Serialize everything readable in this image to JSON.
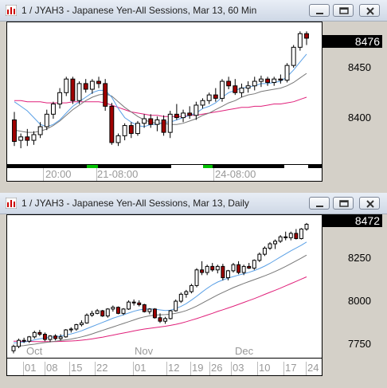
{
  "top_window": {
    "title": "1 / JYAH3 - Japanese Yen-All Sessions, Mar 13, 60 Min",
    "last_price": "8476",
    "price_labels": [
      "8450",
      "8400"
    ],
    "time_labels": [
      "20:00",
      "21-08:00",
      "24-08:00"
    ]
  },
  "bottom_window": {
    "title": "1 / JYAH3 - Japanese Yen-All Sessions, Mar 13, Daily",
    "last_price": "8472",
    "price_labels": [
      "8250",
      "8000",
      "7750"
    ],
    "month_labels": [
      "Oct",
      "Nov",
      "Dec"
    ],
    "day_labels": [
      "01",
      "08",
      "15",
      "22",
      "01",
      "12",
      "19",
      "26",
      "03",
      "10",
      "17",
      "24"
    ]
  },
  "window_buttons": [
    "minimize",
    "restore",
    "close"
  ],
  "colors": {
    "up": "#ffffff",
    "down": "#a00000",
    "ma_blue": "#5aa0e6",
    "ma_gray": "#777777",
    "ma_pink": "#e0207a",
    "session_green": "#00c000"
  },
  "chart_data": [
    {
      "type": "candlestick",
      "title": "1 / JYAH3 - Japanese Yen-All Sessions, Mar 13, 60 Min",
      "ylim": [
        8365,
        8490
      ],
      "y_ticks": [
        8400,
        8450
      ],
      "x_ticks": [
        "20:00",
        "21-08:00",
        "24-08:00"
      ],
      "grid": false,
      "candles": [
        [
          8404,
          8411,
          8381,
          8385
        ],
        [
          8386,
          8392,
          8379,
          8389
        ],
        [
          8389,
          8396,
          8381,
          8386
        ],
        [
          8386,
          8394,
          8382,
          8391
        ],
        [
          8391,
          8402,
          8388,
          8398
        ],
        [
          8398,
          8413,
          8395,
          8409
        ],
        [
          8409,
          8420,
          8405,
          8418
        ],
        [
          8418,
          8432,
          8414,
          8428
        ],
        [
          8428,
          8442,
          8425,
          8440
        ],
        [
          8440,
          8442,
          8418,
          8421
        ],
        [
          8421,
          8438,
          8418,
          8436
        ],
        [
          8436,
          8440,
          8428,
          8431
        ],
        [
          8431,
          8440,
          8427,
          8438
        ],
        [
          8438,
          8442,
          8432,
          8436
        ],
        [
          8436,
          8440,
          8412,
          8416
        ],
        [
          8416,
          8419,
          8382,
          8384
        ],
        [
          8384,
          8392,
          8381,
          8390
        ],
        [
          8390,
          8401,
          8386,
          8399
        ],
        [
          8399,
          8402,
          8388,
          8392
        ],
        [
          8392,
          8403,
          8390,
          8401
        ],
        [
          8401,
          8409,
          8397,
          8405
        ],
        [
          8405,
          8409,
          8397,
          8400
        ],
        [
          8400,
          8407,
          8394,
          8404
        ],
        [
          8404,
          8408,
          8390,
          8393
        ],
        [
          8393,
          8412,
          8388,
          8409
        ],
        [
          8409,
          8418,
          8404,
          8406
        ],
        [
          8406,
          8413,
          8402,
          8410
        ],
        [
          8410,
          8416,
          8405,
          8408
        ],
        [
          8408,
          8420,
          8404,
          8417
        ],
        [
          8417,
          8423,
          8414,
          8421
        ],
        [
          8421,
          8428,
          8418,
          8426
        ],
        [
          8426,
          8432,
          8420,
          8423
        ],
        [
          8423,
          8440,
          8420,
          8438
        ],
        [
          8438,
          8442,
          8431,
          8434
        ],
        [
          8434,
          8440,
          8426,
          8428
        ],
        [
          8428,
          8436,
          8424,
          8432
        ],
        [
          8432,
          8438,
          8428,
          8434
        ],
        [
          8434,
          8442,
          8430,
          8438
        ],
        [
          8438,
          8443,
          8433,
          8440
        ],
        [
          8440,
          8442,
          8434,
          8437
        ],
        [
          8437,
          8442,
          8434,
          8440
        ],
        [
          8440,
          8444,
          8436,
          8439
        ],
        [
          8439,
          8454,
          8437,
          8452
        ],
        [
          8452,
          8470,
          8450,
          8468
        ],
        [
          8468,
          8482,
          8465,
          8480
        ],
        [
          8480,
          8482,
          8470,
          8476
        ]
      ],
      "ma_fast": [
        8420,
        8416,
        8412,
        8406,
        8400,
        8398,
        8400,
        8404,
        8410,
        8416,
        8420,
        8424,
        8428,
        8430,
        8430,
        8424,
        8414,
        8406,
        8402,
        8399,
        8398,
        8400,
        8400,
        8402,
        8402,
        8404,
        8406,
        8408,
        8410,
        8414,
        8416,
        8419,
        8424,
        8428,
        8430,
        8432,
        8433,
        8434,
        8436,
        8436,
        8437,
        8438,
        8442,
        8448,
        8455,
        8462
      ],
      "ma_slow": [
        8395,
        8394,
        8393,
        8393,
        8394,
        8396,
        8399,
        8403,
        8408,
        8413,
        8417,
        8421,
        8424,
        8426,
        8427,
        8425,
        8420,
        8415,
        8411,
        8407,
        8404,
        8402,
        8401,
        8401,
        8400,
        8400,
        8401,
        8403,
        8405,
        8408,
        8410,
        8413,
        8416,
        8419,
        8421,
        8424,
        8426,
        8427,
        8429,
        8430,
        8431,
        8432,
        8434,
        8437,
        8441,
        8445
      ],
      "ma_long": [
        8421,
        8421,
        8420,
        8420,
        8420,
        8419,
        8419,
        8419,
        8419,
        8420,
        8420,
        8420,
        8420,
        8420,
        8419,
        8417,
        8415,
        8413,
        8411,
        8410,
        8409,
        8408,
        8408,
        8407,
        8407,
        8407,
        8407,
        8408,
        8408,
        8409,
        8410,
        8411,
        8412,
        8413,
        8414,
        8415,
        8415,
        8416,
        8416,
        8417,
        8418,
        8418,
        8419,
        8420,
        8422,
        8424
      ]
    },
    {
      "type": "candlestick",
      "title": "1 / JYAH3 - Japanese Yen-All Sessions, Mar 13, Daily",
      "ylim": [
        7705,
        8525
      ],
      "y_ticks": [
        7750,
        8000,
        8250
      ],
      "x_month_labels": [
        "Oct",
        "Nov",
        "Dec"
      ],
      "x_day_labels": [
        "01",
        "08",
        "15",
        "22",
        "01",
        "12",
        "19",
        "26",
        "03",
        "10",
        "17",
        "24"
      ],
      "grid": false,
      "candles": [
        [
          7745,
          7780,
          7730,
          7770
        ],
        [
          7770,
          7815,
          7760,
          7805
        ],
        [
          7805,
          7820,
          7790,
          7800
        ],
        [
          7800,
          7830,
          7790,
          7825
        ],
        [
          7825,
          7860,
          7815,
          7850
        ],
        [
          7850,
          7865,
          7830,
          7840
        ],
        [
          7840,
          7850,
          7800,
          7810
        ],
        [
          7810,
          7835,
          7795,
          7830
        ],
        [
          7830,
          7840,
          7805,
          7815
        ],
        [
          7815,
          7840,
          7805,
          7825
        ],
        [
          7825,
          7870,
          7820,
          7865
        ],
        [
          7865,
          7880,
          7850,
          7870
        ],
        [
          7870,
          7900,
          7860,
          7895
        ],
        [
          7895,
          7920,
          7885,
          7905
        ],
        [
          7905,
          7960,
          7900,
          7950
        ],
        [
          7950,
          7975,
          7940,
          7960
        ],
        [
          7960,
          7985,
          7955,
          7975
        ],
        [
          7975,
          7980,
          7940,
          7945
        ],
        [
          7945,
          7990,
          7935,
          7985
        ],
        [
          7985,
          8005,
          7970,
          7995
        ],
        [
          7995,
          8000,
          7955,
          7960
        ],
        [
          7960,
          7990,
          7950,
          7985
        ],
        [
          7985,
          8035,
          7980,
          8025
        ],
        [
          8025,
          8040,
          8005,
          8020
        ],
        [
          8020,
          8035,
          8000,
          8010
        ],
        [
          8010,
          8015,
          7965,
          7970
        ],
        [
          7970,
          7990,
          7955,
          7985
        ],
        [
          7985,
          7990,
          7930,
          7935
        ],
        [
          7935,
          7960,
          7905,
          7915
        ],
        [
          7915,
          7940,
          7900,
          7930
        ],
        [
          7930,
          7980,
          7925,
          7975
        ],
        [
          7975,
          8040,
          7970,
          8030
        ],
        [
          8030,
          8080,
          8020,
          8070
        ],
        [
          8070,
          8095,
          8050,
          8085
        ],
        [
          8085,
          8130,
          8075,
          8120
        ],
        [
          8120,
          8220,
          8110,
          8210
        ],
        [
          8210,
          8260,
          8180,
          8195
        ],
        [
          8195,
          8240,
          8180,
          8230
        ],
        [
          8230,
          8250,
          8200,
          8210
        ],
        [
          8210,
          8240,
          8190,
          8230
        ],
        [
          8230,
          8245,
          8150,
          8165
        ],
        [
          8165,
          8210,
          8150,
          8205
        ],
        [
          8205,
          8250,
          8195,
          8240
        ],
        [
          8240,
          8260,
          8185,
          8195
        ],
        [
          8195,
          8240,
          8180,
          8230
        ],
        [
          8230,
          8250,
          8215,
          8220
        ],
        [
          8220,
          8270,
          8210,
          8265
        ],
        [
          8265,
          8310,
          8255,
          8300
        ],
        [
          8300,
          8345,
          8290,
          8335
        ],
        [
          8335,
          8370,
          8325,
          8360
        ],
        [
          8360,
          8385,
          8330,
          8375
        ],
        [
          8375,
          8410,
          8365,
          8400
        ],
        [
          8400,
          8430,
          8380,
          8395
        ],
        [
          8395,
          8430,
          8380,
          8420
        ],
        [
          8420,
          8445,
          8385,
          8390
        ],
        [
          8390,
          8450,
          8385,
          8445
        ],
        [
          8445,
          8480,
          8435,
          8472
        ]
      ],
      "ma_fast": [
        7790,
        7792,
        7795,
        7800,
        7808,
        7814,
        7818,
        7822,
        7826,
        7830,
        7836,
        7842,
        7850,
        7860,
        7872,
        7884,
        7896,
        7908,
        7920,
        7932,
        7942,
        7952,
        7962,
        7972,
        7980,
        7984,
        7986,
        7984,
        7980,
        7976,
        7978,
        7988,
        8000,
        8016,
        8036,
        8058,
        8082,
        8104,
        8124,
        8140,
        8152,
        8162,
        8172,
        8180,
        8188,
        8196,
        8206,
        8218,
        8232,
        8248,
        8266,
        8284,
        8302,
        8320,
        8336,
        8352,
        8370
      ],
      "ma_slow": [
        7770,
        7772,
        7775,
        7779,
        7783,
        7788,
        7792,
        7796,
        7800,
        7804,
        7808,
        7812,
        7818,
        7825,
        7833,
        7842,
        7852,
        7862,
        7872,
        7882,
        7892,
        7902,
        7912,
        7922,
        7932,
        7940,
        7946,
        7950,
        7952,
        7953,
        7955,
        7960,
        7967,
        7976,
        7988,
        8002,
        8018,
        8034,
        8050,
        8066,
        8080,
        8094,
        8108,
        8120,
        8132,
        8143,
        8154,
        8165,
        8176,
        8188,
        8201,
        8215,
        8230,
        8246,
        8262,
        8278,
        8295
      ],
      "ma_long": [
        7800,
        7800,
        7799,
        7799,
        7798,
        7798,
        7798,
        7798,
        7798,
        7799,
        7800,
        7801,
        7803,
        7806,
        7809,
        7813,
        7818,
        7823,
        7829,
        7835,
        7841,
        7847,
        7853,
        7859,
        7865,
        7870,
        7874,
        7878,
        7882,
        7886,
        7891,
        7897,
        7904,
        7912,
        7921,
        7930,
        7940,
        7950,
        7960,
        7971,
        7981,
        7991,
        8001,
        8012,
        8023,
        8034,
        8045,
        8057,
        8069,
        8081,
        8093,
        8105,
        8118,
        8131,
        8144,
        8157,
        8170
      ]
    }
  ]
}
